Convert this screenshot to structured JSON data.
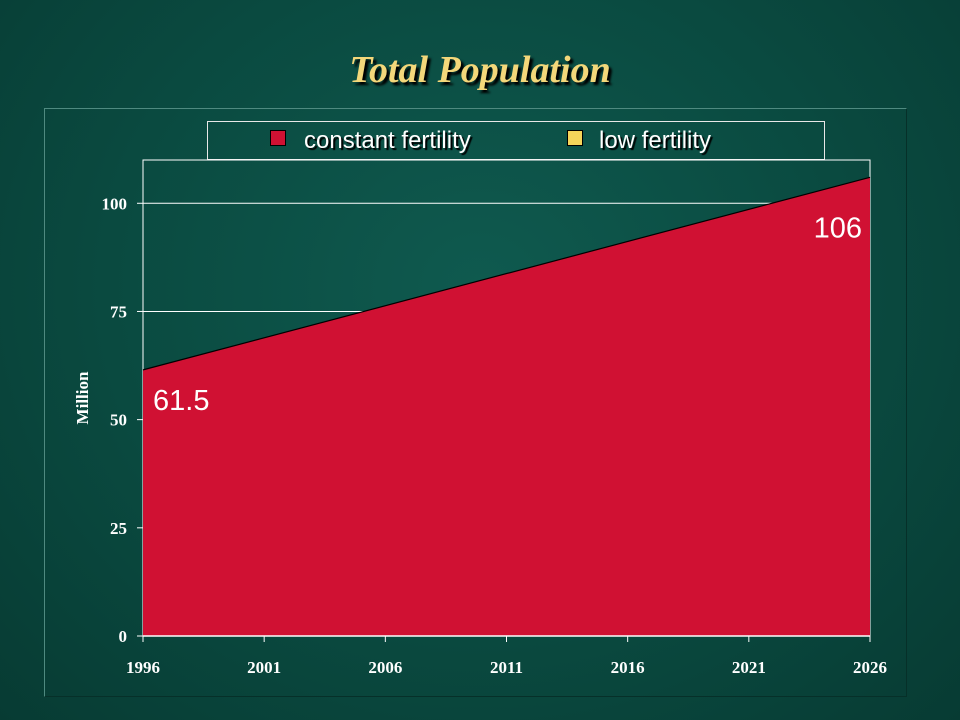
{
  "chart_data": {
    "type": "area",
    "title": "Total Population",
    "xlabel": "",
    "ylabel": "Million",
    "x": [
      1996,
      2026
    ],
    "x_ticks": [
      "1996",
      "2001",
      "2006",
      "2011",
      "2016",
      "2021",
      "2026"
    ],
    "y_ticks": [
      "0",
      "25",
      "50",
      "75",
      "100"
    ],
    "ylim": [
      0,
      110
    ],
    "grid": "horizontal",
    "legend_position": "top",
    "series": [
      {
        "name": "constant fertility",
        "color": "#d01133",
        "x": [
          1996,
          2026
        ],
        "values": [
          61.5,
          106
        ]
      },
      {
        "name": "low fertility",
        "color": "#f5d55a",
        "x": [],
        "values": []
      }
    ],
    "data_labels": [
      {
        "text": "61.5",
        "x": 1996,
        "y": 61.5
      },
      {
        "text": "106",
        "x": 2026,
        "y": 106
      }
    ]
  }
}
